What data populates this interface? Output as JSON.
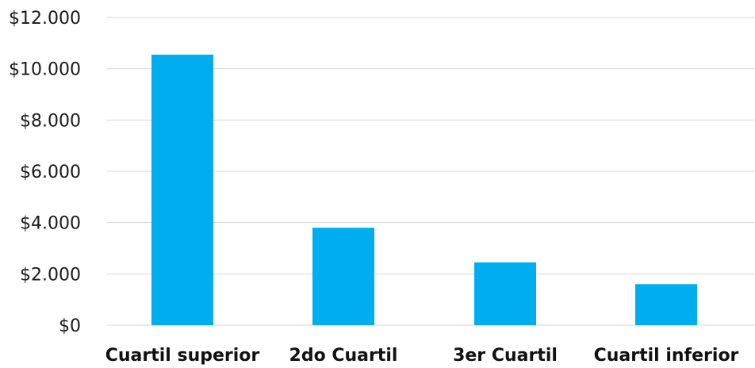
{
  "chart_data": {
    "type": "bar",
    "categories": [
      "Cuartil superior",
      "2do Cuartil",
      "3er Cuartil",
      "Cuartil inferior"
    ],
    "values": [
      10550,
      3800,
      2450,
      1600
    ],
    "yticks": [
      "$0",
      "$2.000",
      "$4.000",
      "$6.000",
      "$8.000",
      "$10.000",
      "$12.000"
    ],
    "ylim": [
      0,
      12000
    ],
    "grid": true,
    "legend": "none",
    "bar_color": "#00adef",
    "title": "",
    "xlabel": "",
    "ylabel": ""
  }
}
